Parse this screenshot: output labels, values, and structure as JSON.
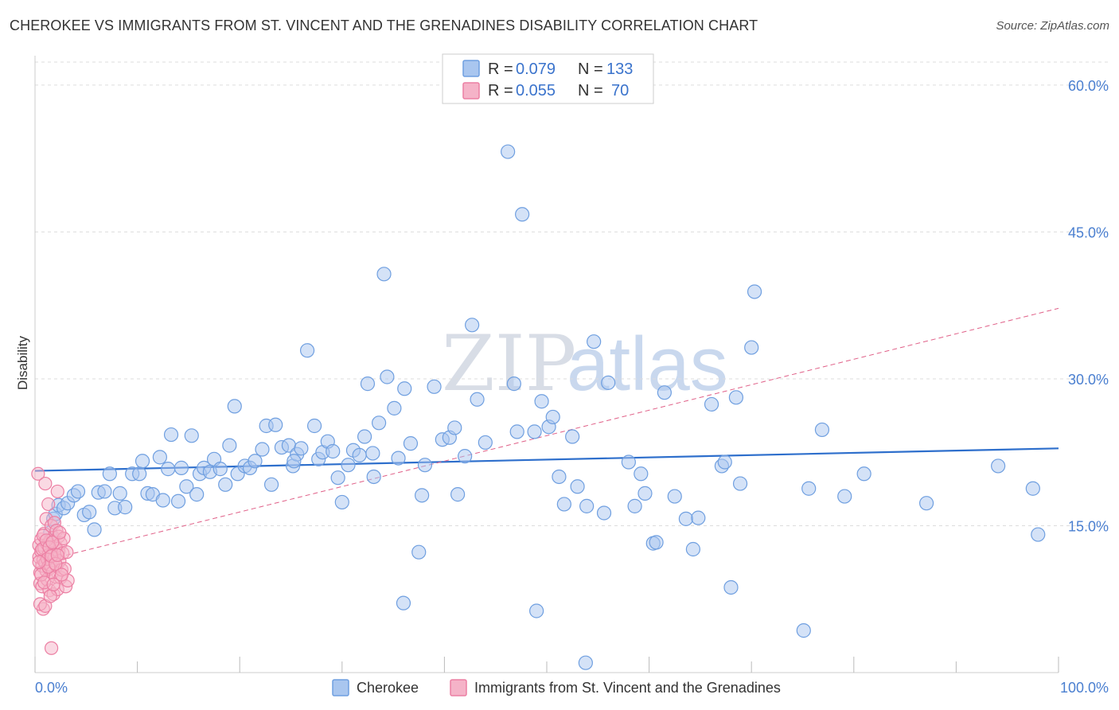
{
  "header": {
    "title": "CHEROKEE VS IMMIGRANTS FROM ST. VINCENT AND THE GRENADINES DISABILITY CORRELATION CHART",
    "source": "Source: ZipAtlas.com"
  },
  "watermark": {
    "zip": "ZIP",
    "atlas": "atlas"
  },
  "legend": {
    "rows": [
      {
        "r_label": "R =",
        "r_value": "0.079",
        "n_label": "N =",
        "n_value": "133"
      },
      {
        "r_label": "R =",
        "r_value": "0.055",
        "n_label": "N =",
        "n_value": "70"
      }
    ]
  },
  "chart_data": {
    "type": "scatter",
    "title": "CHEROKEE VS IMMIGRANTS FROM ST. VINCENT AND THE GRENADINES DISABILITY CORRELATION CHART",
    "xlabel": "",
    "ylabel": "Disability",
    "xlim": [
      0,
      100
    ],
    "ylim": [
      0,
      63
    ],
    "x_tick_labels": [
      "0.0%",
      "100.0%"
    ],
    "y_ticks": [
      15,
      30,
      45,
      60
    ],
    "y_tick_labels": [
      "15.0%",
      "30.0%",
      "45.0%",
      "60.0%"
    ],
    "grid": true,
    "colors": {
      "cherokee_fill": "#a9c6ef",
      "cherokee_stroke": "#6f9fe0",
      "cherokee_line": "#2e6fcc",
      "immigrants_fill": "#f5b3c8",
      "immigrants_stroke": "#ec7fa3",
      "immigrants_line": "#e06088",
      "tick": "#4a7fd0",
      "grid": "#dddddd"
    },
    "series": [
      {
        "name": "Cherokee",
        "trend": {
          "x": [
            0,
            100
          ],
          "y": [
            20.6,
            22.9
          ]
        },
        "points": [
          [
            1.5,
            14.3
          ],
          [
            1.8,
            15.7
          ],
          [
            2.0,
            16.2
          ],
          [
            2.3,
            17.1
          ],
          [
            2.8,
            16.8
          ],
          [
            3.2,
            17.3
          ],
          [
            3.8,
            18.1
          ],
          [
            4.2,
            18.5
          ],
          [
            4.8,
            16.1
          ],
          [
            5.3,
            16.4
          ],
          [
            5.8,
            14.6
          ],
          [
            6.2,
            18.4
          ],
          [
            6.8,
            18.5
          ],
          [
            7.3,
            20.3
          ],
          [
            7.8,
            16.8
          ],
          [
            8.3,
            18.3
          ],
          [
            8.8,
            16.9
          ],
          [
            9.5,
            20.3
          ],
          [
            10.2,
            20.3
          ],
          [
            10.5,
            21.6
          ],
          [
            11.0,
            18.3
          ],
          [
            11.5,
            18.2
          ],
          [
            12.2,
            22.0
          ],
          [
            12.5,
            17.6
          ],
          [
            13.0,
            20.8
          ],
          [
            13.3,
            24.3
          ],
          [
            14.0,
            17.5
          ],
          [
            14.3,
            20.9
          ],
          [
            14.8,
            19.0
          ],
          [
            15.3,
            24.2
          ],
          [
            15.8,
            18.2
          ],
          [
            16.1,
            20.3
          ],
          [
            16.5,
            20.9
          ],
          [
            17.1,
            20.5
          ],
          [
            17.5,
            21.8
          ],
          [
            18.1,
            20.8
          ],
          [
            18.6,
            19.2
          ],
          [
            19.0,
            23.2
          ],
          [
            19.5,
            27.2
          ],
          [
            19.8,
            20.3
          ],
          [
            20.5,
            21.1
          ],
          [
            21.0,
            20.9
          ],
          [
            21.5,
            21.6
          ],
          [
            22.2,
            22.8
          ],
          [
            22.6,
            25.2
          ],
          [
            23.1,
            19.2
          ],
          [
            23.5,
            25.3
          ],
          [
            24.1,
            23.0
          ],
          [
            24.8,
            23.2
          ],
          [
            25.2,
            21.1
          ],
          [
            25.6,
            22.3
          ],
          [
            26.0,
            22.9
          ],
          [
            26.6,
            32.9
          ],
          [
            27.3,
            25.2
          ],
          [
            27.7,
            21.8
          ],
          [
            28.1,
            22.5
          ],
          [
            28.6,
            23.6
          ],
          [
            29.1,
            22.6
          ],
          [
            29.6,
            19.9
          ],
          [
            30.0,
            17.4
          ],
          [
            30.6,
            21.2
          ],
          [
            31.1,
            22.7
          ],
          [
            31.7,
            22.2
          ],
          [
            32.2,
            24.1
          ],
          [
            32.5,
            29.5
          ],
          [
            33.1,
            20.0
          ],
          [
            33.6,
            25.5
          ],
          [
            34.1,
            40.7
          ],
          [
            34.4,
            30.2
          ],
          [
            35.1,
            27.0
          ],
          [
            35.5,
            21.9
          ],
          [
            36.1,
            29.0
          ],
          [
            36.7,
            23.4
          ],
          [
            37.5,
            12.3
          ],
          [
            37.8,
            18.1
          ],
          [
            38.1,
            21.2
          ],
          [
            39.0,
            29.2
          ],
          [
            39.8,
            23.8
          ],
          [
            40.5,
            24.0
          ],
          [
            41.0,
            25.0
          ],
          [
            41.3,
            18.2
          ],
          [
            42.0,
            22.1
          ],
          [
            42.7,
            35.5
          ],
          [
            43.2,
            27.9
          ],
          [
            46.2,
            53.2
          ],
          [
            46.8,
            29.5
          ],
          [
            47.1,
            24.6
          ],
          [
            47.6,
            46.8
          ],
          [
            48.8,
            24.6
          ],
          [
            49.5,
            27.7
          ],
          [
            50.2,
            25.1
          ],
          [
            50.6,
            26.1
          ],
          [
            51.2,
            20.0
          ],
          [
            51.7,
            17.2
          ],
          [
            52.5,
            24.1
          ],
          [
            53.0,
            19.0
          ],
          [
            53.9,
            17.0
          ],
          [
            54.6,
            33.8
          ],
          [
            55.6,
            16.3
          ],
          [
            56.0,
            29.6
          ],
          [
            58.0,
            21.5
          ],
          [
            58.6,
            17.0
          ],
          [
            59.2,
            20.3
          ],
          [
            59.6,
            18.3
          ],
          [
            60.4,
            13.2
          ],
          [
            60.7,
            13.3
          ],
          [
            61.5,
            28.6
          ],
          [
            62.5,
            18.0
          ],
          [
            63.6,
            15.7
          ],
          [
            64.3,
            12.6
          ],
          [
            64.8,
            15.8
          ],
          [
            66.1,
            27.4
          ],
          [
            67.1,
            21.1
          ],
          [
            67.4,
            21.5
          ],
          [
            68.0,
            8.7
          ],
          [
            68.5,
            28.1
          ],
          [
            68.9,
            19.3
          ],
          [
            70.0,
            33.2
          ],
          [
            70.3,
            38.9
          ],
          [
            75.1,
            4.3
          ],
          [
            75.6,
            18.8
          ],
          [
            76.9,
            24.8
          ],
          [
            79.1,
            18.0
          ],
          [
            81.0,
            20.3
          ],
          [
            87.1,
            17.3
          ],
          [
            94.1,
            21.1
          ],
          [
            97.5,
            18.8
          ],
          [
            98.0,
            14.1
          ],
          [
            53.8,
            1.0
          ],
          [
            36.0,
            7.1
          ],
          [
            33.0,
            22.4
          ],
          [
            44.0,
            23.5
          ],
          [
            25.3,
            21.6
          ],
          [
            49.0,
            6.3
          ]
        ]
      },
      {
        "name": "Immigrants from St. Vincent and the Grenadines",
        "trend": {
          "x": [
            0,
            100
          ],
          "y": [
            11.2,
            37.2
          ]
        },
        "points": [
          [
            0.3,
            20.3
          ],
          [
            0.4,
            13.0
          ],
          [
            0.4,
            11.8
          ],
          [
            0.5,
            10.2
          ],
          [
            0.5,
            9.1
          ],
          [
            0.6,
            12.4
          ],
          [
            0.6,
            13.6
          ],
          [
            0.7,
            10.9
          ],
          [
            0.7,
            8.8
          ],
          [
            0.8,
            11.5
          ],
          [
            0.8,
            6.5
          ],
          [
            0.9,
            14.2
          ],
          [
            0.9,
            12.7
          ],
          [
            1.0,
            19.3
          ],
          [
            1.0,
            11.2
          ],
          [
            1.1,
            10.4
          ],
          [
            1.1,
            15.7
          ],
          [
            1.2,
            13.1
          ],
          [
            1.2,
            9.5
          ],
          [
            1.3,
            17.2
          ],
          [
            1.3,
            12.0
          ],
          [
            1.4,
            10.6
          ],
          [
            1.4,
            8.4
          ],
          [
            1.5,
            13.5
          ],
          [
            1.5,
            11.0
          ],
          [
            1.6,
            2.5
          ],
          [
            1.6,
            15.0
          ],
          [
            1.7,
            12.1
          ],
          [
            1.7,
            10.2
          ],
          [
            1.8,
            13.8
          ],
          [
            1.8,
            8.0
          ],
          [
            1.9,
            11.7
          ],
          [
            1.9,
            15.3
          ],
          [
            2.0,
            9.8
          ],
          [
            2.0,
            12.9
          ],
          [
            2.1,
            14.5
          ],
          [
            2.1,
            10.9
          ],
          [
            2.2,
            18.5
          ],
          [
            2.2,
            8.5
          ],
          [
            2.3,
            12.4
          ],
          [
            2.3,
            13.9
          ],
          [
            2.4,
            11.4
          ],
          [
            2.5,
            9.7
          ],
          [
            2.5,
            13.2
          ],
          [
            2.6,
            10.5
          ],
          [
            2.7,
            12.2
          ],
          [
            2.8,
            13.7
          ],
          [
            2.9,
            10.6
          ],
          [
            3.0,
            8.8
          ],
          [
            3.1,
            12.3
          ],
          [
            3.2,
            9.4
          ],
          [
            0.5,
            7.0
          ],
          [
            0.6,
            10.0
          ],
          [
            0.7,
            12.6
          ],
          [
            0.8,
            14.0
          ],
          [
            0.9,
            9.2
          ],
          [
            1.0,
            6.8
          ],
          [
            1.1,
            13.5
          ],
          [
            1.2,
            11.6
          ],
          [
            1.3,
            10.8
          ],
          [
            1.4,
            12.8
          ],
          [
            1.5,
            7.8
          ],
          [
            1.6,
            11.9
          ],
          [
            1.7,
            13.3
          ],
          [
            1.8,
            9.0
          ],
          [
            2.0,
            11.1
          ],
          [
            2.2,
            12.0
          ],
          [
            2.4,
            14.3
          ],
          [
            2.6,
            10.0
          ],
          [
            0.4,
            11.3
          ]
        ]
      }
    ]
  },
  "bottom_legend": {
    "items": [
      "Cherokee",
      "Immigrants from St. Vincent and the Grenadines"
    ]
  }
}
